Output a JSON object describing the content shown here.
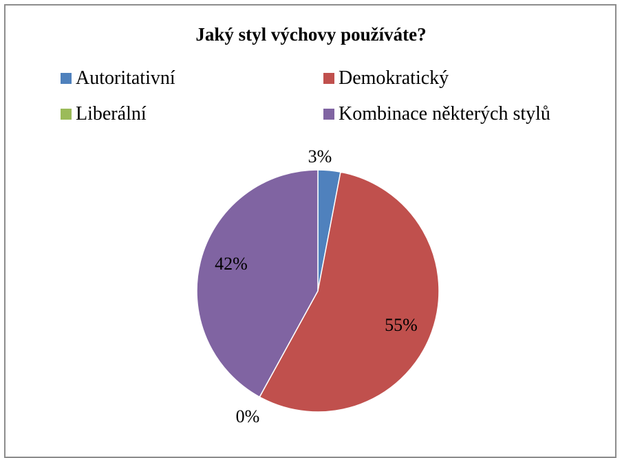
{
  "chart_data": {
    "type": "pie",
    "title": "Jaký styl výchovy používáte?",
    "categories": [
      "Autoritativní",
      "Demokratický",
      "Liberální",
      "Kombinace některých stylů"
    ],
    "values": [
      3,
      55,
      0,
      42
    ],
    "data_labels": [
      "3%",
      "55%",
      "0%",
      "42%"
    ],
    "colors": [
      "#4f81bd",
      "#c0504d",
      "#9bbb59",
      "#8064a2"
    ],
    "legend_position": "top",
    "start_angle_deg": 0,
    "direction": "clockwise"
  }
}
